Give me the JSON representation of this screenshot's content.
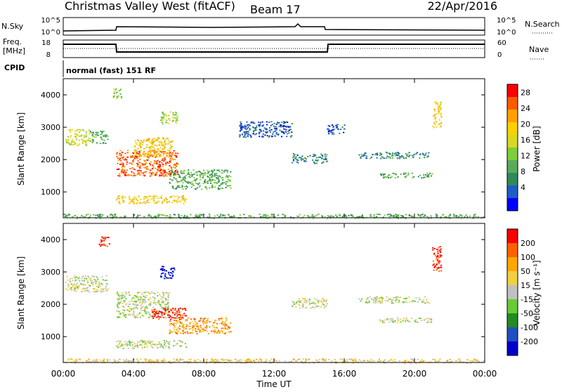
{
  "header": {
    "title": "Christmas Valley West (fitACF)",
    "beam": "Beam 17",
    "date": "22/Apr/2016"
  },
  "strip_labels": {
    "nsky": "N.Sky",
    "nsky_ticks": [
      "10^5",
      "10^0"
    ],
    "nsearch": "N.Search",
    "nsearch_ticks": [
      "10^5",
      "10^0"
    ],
    "freq_line1": "Freq.",
    "freq_line2": "[MHz]",
    "freq_ticks": [
      "18",
      "8"
    ],
    "nave": "Nave",
    "nave_ticks": [
      "60",
      "0"
    ],
    "cpid": "CPID",
    "cpid_text": "normal (fast) 151 RF"
  },
  "colors": {
    "power": [
      "#0000ff",
      "#1e5cc8",
      "#2e8b57",
      "#5aaa5a",
      "#7ccf3a",
      "#d8d820",
      "#ffd000",
      "#ffa000",
      "#ff5a00",
      "#ff0000"
    ],
    "velocity": [
      "#0000cd",
      "#2050c0",
      "#228b22",
      "#66cc33",
      "#c0c0c0",
      "#f0d040",
      "#ffa500",
      "#ff6000",
      "#ff0000"
    ]
  },
  "chart_data": [
    {
      "type": "heatmap",
      "name": "power",
      "ylabel": "Slant Range [km]",
      "yticks": [
        "1000",
        "2000",
        "3000",
        "4000"
      ],
      "ylim": [
        200,
        4500
      ],
      "xlim": [
        0,
        24
      ],
      "colorbar_label": "Power [dB]",
      "colorbar_ticks": [
        "28",
        "24",
        "20",
        "16",
        "12",
        "8",
        "4"
      ],
      "regions": [
        {
          "t0": 0.0,
          "t1": 24.0,
          "r0": 200,
          "r1": 330,
          "c": 3
        },
        {
          "t0": 0.1,
          "t1": 1.5,
          "r0": 2450,
          "r1": 2950,
          "c": 5
        },
        {
          "t0": 1.5,
          "t1": 2.5,
          "r0": 2500,
          "r1": 2900,
          "c": 3
        },
        {
          "t0": 2.8,
          "t1": 3.3,
          "r0": 3900,
          "r1": 4200,
          "c": 4
        },
        {
          "t0": 3.0,
          "t1": 6.5,
          "r0": 1500,
          "r1": 2300,
          "c": 8
        },
        {
          "t0": 4.0,
          "t1": 6.2,
          "r0": 2100,
          "r1": 2700,
          "c": 6
        },
        {
          "t0": 5.5,
          "t1": 6.5,
          "r0": 3100,
          "r1": 3500,
          "c": 4
        },
        {
          "t0": 6.0,
          "t1": 9.5,
          "r0": 1100,
          "r1": 1700,
          "c": 3
        },
        {
          "t0": 3.0,
          "t1": 7.0,
          "r0": 650,
          "r1": 900,
          "c": 6
        },
        {
          "t0": 10.0,
          "t1": 13.0,
          "r0": 2700,
          "r1": 3200,
          "c": 1
        },
        {
          "t0": 13.0,
          "t1": 15.0,
          "r0": 1900,
          "r1": 2200,
          "c": 2
        },
        {
          "t0": 15.0,
          "t1": 16.0,
          "r0": 2800,
          "r1": 3100,
          "c": 1
        },
        {
          "t0": 16.8,
          "t1": 20.8,
          "r0": 2050,
          "r1": 2250,
          "c": 2
        },
        {
          "t0": 18.0,
          "t1": 21.0,
          "r0": 1450,
          "r1": 1600,
          "c": 3
        },
        {
          "t0": 21.0,
          "t1": 21.5,
          "r0": 3000,
          "r1": 3800,
          "c": 6
        }
      ]
    },
    {
      "type": "heatmap",
      "name": "velocity",
      "xlabel": "Time UT",
      "ylabel": "Slant Range [km]",
      "xticks": [
        "00:00",
        "04:00",
        "08:00",
        "12:00",
        "16:00",
        "20:00",
        "00:00"
      ],
      "yticks": [
        "1000",
        "2000",
        "3000",
        "4000"
      ],
      "ylim": [
        200,
        4500
      ],
      "xlim": [
        0,
        24
      ],
      "colorbar_label": "Velocity [m s⁻¹]",
      "colorbar_ticks": [
        "200",
        "100",
        "50",
        "15",
        "-15",
        "-50",
        "-100",
        "-200"
      ],
      "regions": [
        {
          "t0": 0.0,
          "t1": 24.0,
          "r0": 200,
          "r1": 330,
          "c": 5
        },
        {
          "t0": 0.1,
          "t1": 2.5,
          "r0": 2400,
          "r1": 2900,
          "c": 4
        },
        {
          "t0": 2.0,
          "t1": 2.6,
          "r0": 3800,
          "r1": 4100,
          "c": 8
        },
        {
          "t0": 3.0,
          "t1": 6.0,
          "r0": 1600,
          "r1": 2400,
          "c": 4
        },
        {
          "t0": 5.5,
          "t1": 6.3,
          "r0": 2800,
          "r1": 3200,
          "c": 0
        },
        {
          "t0": 5.0,
          "t1": 7.0,
          "r0": 1550,
          "r1": 1900,
          "c": 8
        },
        {
          "t0": 6.0,
          "t1": 9.5,
          "r0": 1100,
          "r1": 1600,
          "c": 6
        },
        {
          "t0": 3.0,
          "t1": 7.0,
          "r0": 650,
          "r1": 900,
          "c": 4
        },
        {
          "t0": 13.0,
          "t1": 15.0,
          "r0": 1900,
          "r1": 2200,
          "c": 4
        },
        {
          "t0": 16.8,
          "t1": 20.8,
          "r0": 2050,
          "r1": 2250,
          "c": 4
        },
        {
          "t0": 18.0,
          "t1": 21.0,
          "r0": 1450,
          "r1": 1600,
          "c": 4
        },
        {
          "t0": 21.0,
          "t1": 21.5,
          "r0": 3000,
          "r1": 3800,
          "c": 8
        }
      ]
    }
  ]
}
